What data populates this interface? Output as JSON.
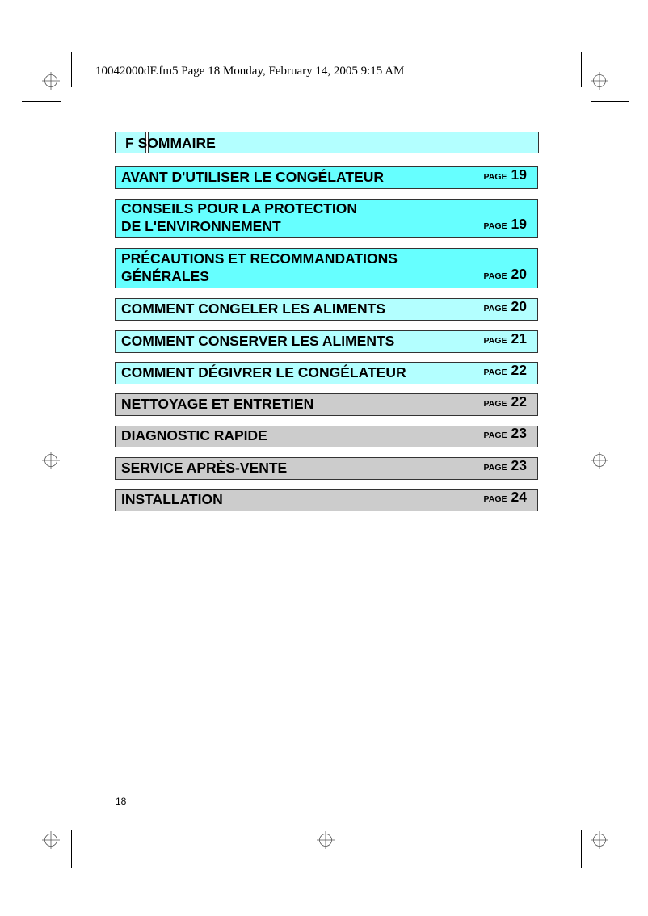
{
  "header_line": "10042000dF.fm5  Page 18  Monday, February 14, 2005  9:15 AM",
  "toc": {
    "section_letter": "F",
    "title": "SOMMAIRE",
    "page_label": "PAGE",
    "entries": [
      {
        "lines": [
          "AVANT D'UTILISER LE CONGÉLATEUR"
        ],
        "page": "19",
        "color": "#66ffff"
      },
      {
        "lines": [
          "CONSEILS POUR LA PROTECTION",
          "DE L'ENVIRONNEMENT"
        ],
        "page": "19",
        "color": "#66ffff"
      },
      {
        "lines": [
          "PRÉCAUTIONS ET RECOMMANDATIONS",
          "GÉNÉRALES"
        ],
        "page": "20",
        "color": "#66ffff"
      },
      {
        "lines": [
          "COMMENT CONGELER LES ALIMENTS"
        ],
        "page": "20",
        "color": "#b3ffff"
      },
      {
        "lines": [
          "COMMENT CONSERVER LES ALIMENTS"
        ],
        "page": "21",
        "color": "#b3ffff"
      },
      {
        "lines": [
          "COMMENT DÉGIVRER LE CONGÉLATEUR"
        ],
        "page": "22",
        "color": "#b3ffff"
      },
      {
        "lines": [
          "NETTOYAGE ET ENTRETIEN"
        ],
        "page": "22",
        "color": "#cccccc"
      },
      {
        "lines": [
          "DIAGNOSTIC RAPIDE"
        ],
        "page": "23",
        "color": "#cccccc"
      },
      {
        "lines": [
          "SERVICE APRÈS-VENTE"
        ],
        "page": "23",
        "color": "#cccccc"
      },
      {
        "lines": [
          "INSTALLATION"
        ],
        "page": "24",
        "color": "#cccccc"
      }
    ]
  },
  "page_number": "18"
}
